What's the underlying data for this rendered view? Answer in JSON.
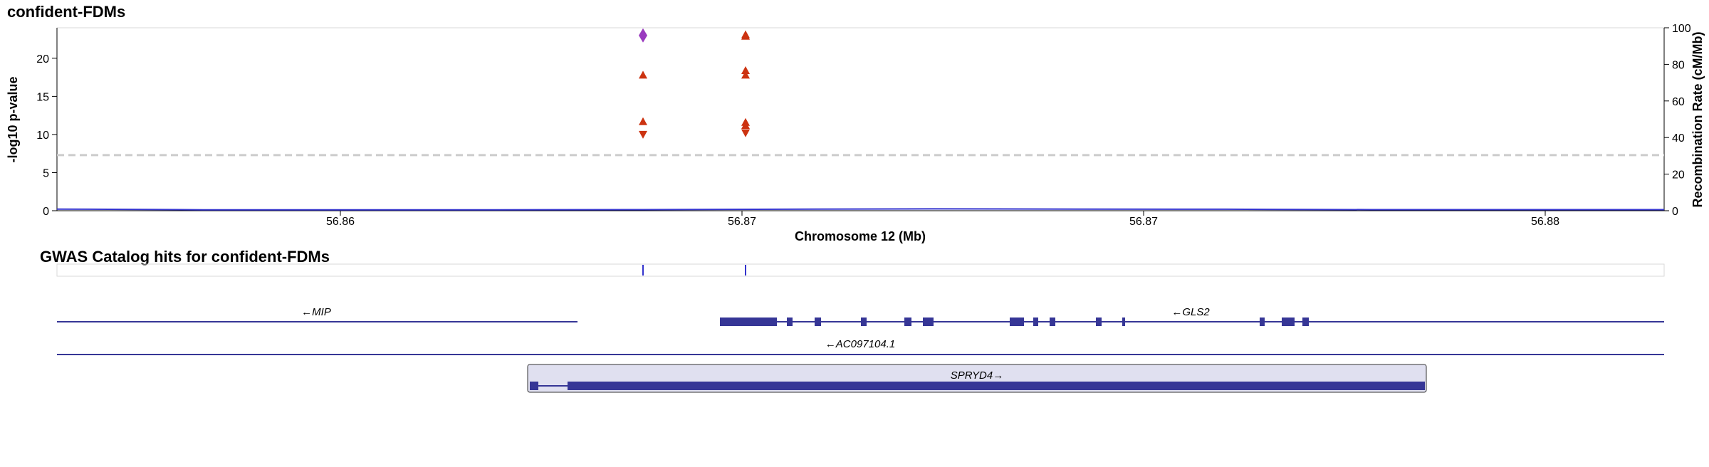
{
  "chart_data": {
    "type": "scatter",
    "title": "confident-FDMs",
    "xlabel": "Chromosome 12 (Mb)",
    "ylabel": "-log10 p-value",
    "y2label": "Recombination Rate (cM/Mb)",
    "x_tick_labels": [
      "56.86",
      "56.87",
      "56.87",
      "56.88"
    ],
    "ylim": [
      0,
      24
    ],
    "yticks": [
      0,
      5,
      10,
      15,
      20
    ],
    "y2lim": [
      0,
      100
    ],
    "y2ticks": [
      0,
      20,
      40,
      60,
      80,
      100
    ],
    "significance_threshold": 7.3,
    "grid": false,
    "colors": {
      "lead": "#9a3bbf",
      "points": "#cc3311",
      "recomb": "#3333cc",
      "threshold": "#cccccc",
      "gene": "#363696"
    },
    "points": [
      {
        "group": 1,
        "y": 23.0,
        "marker": "diamond",
        "lead": true
      },
      {
        "group": 1,
        "y": 17.8,
        "marker": "triangle-up"
      },
      {
        "group": 1,
        "y": 11.7,
        "marker": "triangle-up"
      },
      {
        "group": 1,
        "y": 10.0,
        "marker": "triangle-down"
      },
      {
        "group": 2,
        "y": 23.1,
        "marker": "triangle-up"
      },
      {
        "group": 2,
        "y": 22.9,
        "marker": "triangle-up"
      },
      {
        "group": 2,
        "y": 18.4,
        "marker": "triangle-up"
      },
      {
        "group": 2,
        "y": 17.8,
        "marker": "triangle-up"
      },
      {
        "group": 2,
        "y": 11.6,
        "marker": "triangle-up"
      },
      {
        "group": 2,
        "y": 11.2,
        "marker": "triangle-up"
      },
      {
        "group": 2,
        "y": 10.2,
        "marker": "triangle-down"
      }
    ],
    "recombination": [
      0.9,
      0.5,
      0.5,
      0.5,
      0.6,
      0.8,
      1.0,
      0.9,
      0.8,
      0.6,
      0.6,
      0.6
    ]
  },
  "gwas_track": {
    "title": "GWAS Catalog hits for confident-FDMs",
    "hit_groups": [
      1,
      2
    ]
  },
  "genes": [
    {
      "label": "←MIP"
    },
    {
      "label": "←GLS2"
    },
    {
      "label": "←AC097104.1"
    },
    {
      "label": "SPRYD4→",
      "highlighted": true
    }
  ]
}
